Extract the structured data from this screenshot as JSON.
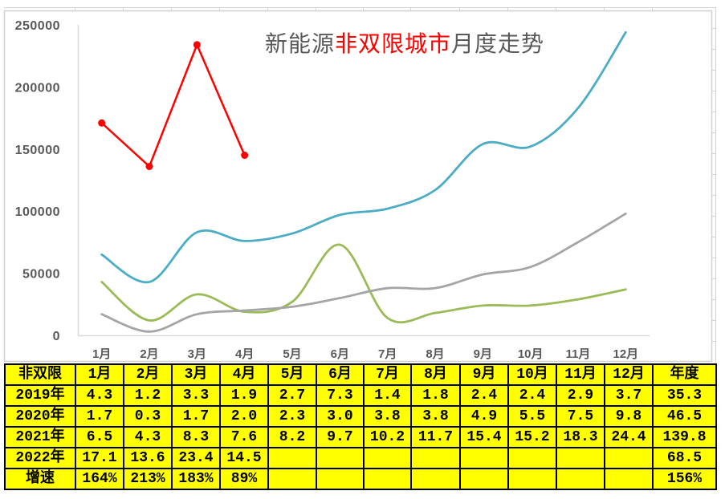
{
  "chart": {
    "title_parts": [
      {
        "text": "新能源",
        "color": "#595959"
      },
      {
        "text": "非双限城市",
        "color": "#FF0000"
      },
      {
        "text": "月度走势",
        "color": "#595959"
      }
    ]
  },
  "chart_data": {
    "type": "line",
    "title": "新能源非双限城市月度走势",
    "xlabel": "",
    "ylabel": "",
    "categories": [
      "1月",
      "2月",
      "3月",
      "4月",
      "5月",
      "6月",
      "7月",
      "8月",
      "9月",
      "10月",
      "11月",
      "12月"
    ],
    "ylim": [
      0,
      250000
    ],
    "yticks": [
      0,
      50000,
      100000,
      150000,
      200000,
      250000
    ],
    "ytick_labels": [
      "0",
      "50000",
      "100000",
      "150000",
      "200000",
      "250000"
    ],
    "grid": false,
    "legend": "none",
    "series": [
      {
        "name": "2019年",
        "color": "#9BBB59",
        "smooth": true,
        "markers": false,
        "values": [
          43000,
          12000,
          33000,
          19000,
          27000,
          73000,
          14000,
          18000,
          24000,
          24000,
          29000,
          37000
        ]
      },
      {
        "name": "2020年",
        "color": "#A5A5A5",
        "smooth": true,
        "markers": false,
        "values": [
          17000,
          3000,
          17000,
          20000,
          23000,
          30000,
          38000,
          38000,
          49000,
          55000,
          75000,
          98000
        ]
      },
      {
        "name": "2021年",
        "color": "#4BACC6",
        "smooth": true,
        "markers": false,
        "values": [
          65000,
          43000,
          83000,
          76000,
          82000,
          97000,
          102000,
          117000,
          154000,
          152000,
          183000,
          244000
        ]
      },
      {
        "name": "2022年",
        "color": "#FF0000",
        "smooth": false,
        "markers": true,
        "values": [
          171000,
          136000,
          234000,
          145000,
          null,
          null,
          null,
          null,
          null,
          null,
          null,
          null
        ]
      }
    ]
  },
  "table": {
    "header": [
      "非双限",
      "1月",
      "2月",
      "3月",
      "4月",
      "5月",
      "6月",
      "7月",
      "8月",
      "9月",
      "10月",
      "11月",
      "12月",
      "年度"
    ],
    "rows": [
      {
        "label": "2019年",
        "cells": [
          "4.3",
          "1.2",
          "3.3",
          "1.9",
          "2.7",
          "7.3",
          "1.4",
          "1.8",
          "2.4",
          "2.4",
          "2.9",
          "3.7"
        ],
        "total": "35.3"
      },
      {
        "label": "2020年",
        "cells": [
          "1.7",
          "0.3",
          "1.7",
          "2.0",
          "2.3",
          "3.0",
          "3.8",
          "3.8",
          "4.9",
          "5.5",
          "7.5",
          "9.8"
        ],
        "total": "46.5"
      },
      {
        "label": "2021年",
        "cells": [
          "6.5",
          "4.3",
          "8.3",
          "7.6",
          "8.2",
          "9.7",
          "10.2",
          "11.7",
          "15.4",
          "15.2",
          "18.3",
          "24.4"
        ],
        "total": "139.8"
      },
      {
        "label": "2022年",
        "cells": [
          "17.1",
          "13.6",
          "23.4",
          "14.5",
          "",
          "",
          "",
          "",
          "",
          "",
          "",
          ""
        ],
        "total": "68.5"
      },
      {
        "label": "增速",
        "cells": [
          "164%",
          "213%",
          "183%",
          "89%",
          "",
          "",
          "",
          "",
          "",
          "",
          "",
          ""
        ],
        "total": "156%"
      }
    ],
    "cell_color": "#FFFF00"
  }
}
